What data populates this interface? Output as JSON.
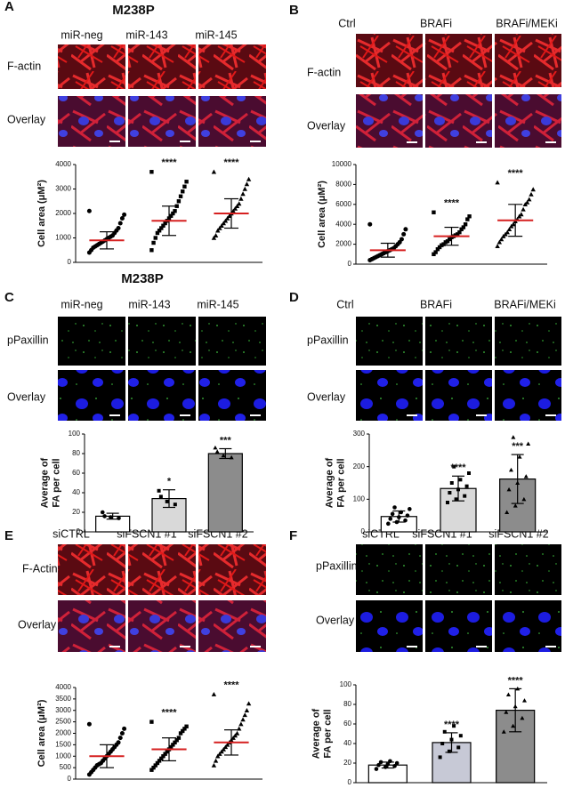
{
  "panels": [
    {
      "letter": "A",
      "title": "M238P",
      "columns": [
        "miR-neg",
        "miR-143",
        "miR-145"
      ],
      "rows": [
        "F-actin",
        "Overlay"
      ]
    },
    {
      "letter": "B",
      "columns": [
        "Ctrl",
        "BRAFi",
        "BRAFi/MEKi"
      ],
      "rows": [
        "F-actin",
        "Overlay"
      ]
    },
    {
      "letter": "C",
      "title": "M238P",
      "columns": [
        "miR-neg",
        "miR-143",
        "miR-145"
      ],
      "rows": [
        "pPaxillin",
        "Overlay"
      ]
    },
    {
      "letter": "D",
      "columns": [
        "Ctrl",
        "BRAFi",
        "BRAFi/MEKi"
      ],
      "rows": [
        "pPaxillin",
        "Overlay"
      ]
    },
    {
      "letter": "E",
      "columns": [
        "siCTRL",
        "siFSCN1 #1",
        "siFSCN1 #2"
      ],
      "rows": [
        "F-Actin",
        "Overlay"
      ]
    },
    {
      "letter": "F",
      "columns": [
        "siCTRL",
        "siFSCN1 #1",
        "siFSCN1 #2"
      ],
      "rows": [
        "pPaxillin",
        "Overlay"
      ]
    }
  ],
  "chart_data": [
    {
      "type": "dot",
      "ylabel": [
        "Cell area (μM²)"
      ],
      "categories": [
        null,
        null,
        null
      ],
      "ylim": [
        0,
        4000
      ],
      "yticks": [
        0,
        1000,
        2000,
        3000,
        4000
      ],
      "markers": [
        "circle",
        "square",
        "triangle"
      ],
      "mean_color": "#d62020",
      "points": [
        [
          2100,
          1950,
          1800,
          1600,
          1400,
          1300,
          1200,
          1100,
          1050,
          1000,
          950,
          900,
          850,
          800,
          750,
          700,
          650,
          600,
          500,
          400
        ],
        [
          3700,
          3300,
          3100,
          2900,
          2700,
          2500,
          2300,
          2100,
          2000,
          1900,
          1800,
          1700,
          1600,
          1500,
          1400,
          1300,
          1200,
          1000,
          800,
          500
        ],
        [
          3700,
          3400,
          3200,
          3000,
          2800,
          2600,
          2400,
          2300,
          2200,
          2100,
          2000,
          1900,
          1800,
          1700,
          1600,
          1500,
          1400,
          1300,
          1100,
          1000
        ]
      ],
      "mean": [
        900,
        1700,
        2000
      ],
      "sd": [
        350,
        600,
        600
      ],
      "annotations": [
        null,
        "****",
        "****"
      ]
    },
    {
      "type": "dot",
      "ylabel": [
        "Cell area (μM²)"
      ],
      "categories": [
        null,
        null,
        null
      ],
      "ylim": [
        0,
        10000
      ],
      "yticks": [
        0,
        2000,
        4000,
        6000,
        8000,
        10000
      ],
      "markers": [
        "circle",
        "square",
        "triangle"
      ],
      "mean_color": "#d62020",
      "points": [
        [
          4000,
          3500,
          3000,
          2500,
          2200,
          2000,
          1800,
          1600,
          1500,
          1400,
          1300,
          1200,
          1100,
          1000,
          900,
          800,
          700,
          600,
          500,
          400
        ],
        [
          5200,
          4800,
          4500,
          4000,
          3700,
          3500,
          3200,
          3000,
          2900,
          2800,
          2700,
          2500,
          2300,
          2200,
          2000,
          1900,
          1700,
          1500,
          1200,
          1000
        ],
        [
          8200,
          7500,
          7000,
          6500,
          6200,
          6000,
          5500,
          5000,
          4800,
          4500,
          4300,
          4000,
          3800,
          3500,
          3200,
          3000,
          2800,
          2500,
          2200,
          1800
        ]
      ],
      "mean": [
        1400,
        2800,
        4400
      ],
      "sd": [
        700,
        900,
        1600
      ],
      "annotations": [
        null,
        "****",
        "****"
      ]
    },
    {
      "type": "bar",
      "ylabel": [
        "Average of",
        "FA per cell"
      ],
      "categories": [
        null,
        null,
        null
      ],
      "ylim": [
        0,
        100
      ],
      "yticks": [
        0,
        20,
        40,
        60,
        80,
        100
      ],
      "values": [
        16,
        34,
        80
      ],
      "errors": [
        3,
        9,
        5
      ],
      "colors": [
        "#ffffff",
        "#d9d9d9",
        "#8c8c8c"
      ],
      "markers": [
        "circle",
        "square",
        "triangle"
      ],
      "points": [
        [
          20,
          15,
          14,
          16
        ],
        [
          42,
          31,
          28,
          36
        ],
        [
          86,
          78,
          76,
          82
        ]
      ],
      "annotations": [
        null,
        "*",
        "***"
      ]
    },
    {
      "type": "bar",
      "ylabel": [
        "Average of",
        "FA per cell"
      ],
      "categories": [
        null,
        null,
        null
      ],
      "ylim": [
        0,
        300
      ],
      "yticks": [
        0,
        100,
        200,
        300
      ],
      "values": [
        47,
        133,
        162
      ],
      "errors": [
        17,
        38,
        75
      ],
      "colors": [
        "#ffffff",
        "#d9d9d9",
        "#8c8c8c"
      ],
      "markers": [
        "circle",
        "square",
        "triangle"
      ],
      "points": [
        [
          25,
          30,
          35,
          40,
          45,
          50,
          55,
          60,
          70,
          75
        ],
        [
          90,
          100,
          110,
          120,
          130,
          140,
          150,
          160,
          180,
          200
        ],
        [
          60,
          80,
          100,
          130,
          150,
          170,
          190,
          230,
          270,
          290
        ]
      ],
      "annotations": [
        null,
        "****",
        "***"
      ]
    },
    {
      "type": "dot",
      "ylabel": [
        "Cell area (μM²)"
      ],
      "categories": [
        null,
        null,
        null
      ],
      "ylim": [
        0,
        4000
      ],
      "yticks": [
        0,
        500,
        1000,
        1500,
        2000,
        2500,
        3000,
        3500,
        4000
      ],
      "markers": [
        "circle",
        "square",
        "triangle"
      ],
      "mean_color": "#d62020",
      "points": [
        [
          2400,
          2200,
          2000,
          1800,
          1600,
          1500,
          1400,
          1300,
          1200,
          1100,
          1000,
          900,
          800,
          700,
          650,
          600,
          500,
          400,
          300,
          200
        ],
        [
          2500,
          2300,
          2200,
          2100,
          2000,
          1800,
          1700,
          1600,
          1500,
          1400,
          1300,
          1200,
          1100,
          1000,
          900,
          800,
          700,
          600,
          500,
          400
        ],
        [
          3700,
          3300,
          3000,
          2800,
          2600,
          2400,
          2200,
          2000,
          1900,
          1800,
          1700,
          1600,
          1500,
          1400,
          1300,
          1200,
          1100,
          1000,
          800,
          600
        ]
      ],
      "mean": [
        1000,
        1300,
        1600
      ],
      "sd": [
        500,
        500,
        550
      ],
      "annotations": [
        null,
        "****",
        "****"
      ]
    },
    {
      "type": "bar",
      "ylabel": [
        "Average of",
        "FA per cell"
      ],
      "categories": [
        null,
        null,
        null
      ],
      "ylim": [
        0,
        100
      ],
      "yticks": [
        0,
        20,
        40,
        60,
        80,
        100
      ],
      "values": [
        18,
        41,
        74
      ],
      "errors": [
        3,
        10,
        22
      ],
      "colors": [
        "#ffffff",
        "#c7c9d6",
        "#8c8c8c"
      ],
      "markers": [
        "circle",
        "square",
        "triangle"
      ],
      "points": [
        [
          14,
          16,
          17,
          18,
          19,
          20,
          21,
          22
        ],
        [
          26,
          32,
          36,
          40,
          44,
          48,
          52,
          58
        ],
        [
          52,
          58,
          66,
          72,
          78,
          84,
          90,
          96
        ]
      ],
      "annotations": [
        null,
        "****",
        "****"
      ]
    }
  ]
}
